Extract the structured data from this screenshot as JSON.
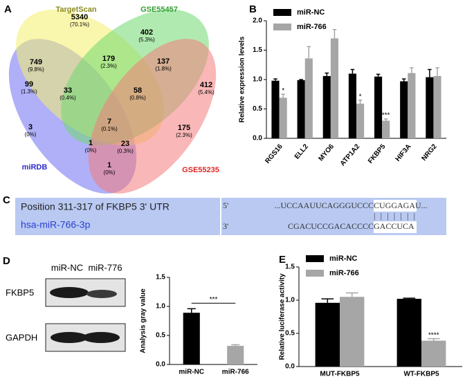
{
  "panel_labels": [
    "A",
    "B",
    "C",
    "D",
    "E"
  ],
  "venn": {
    "sets": [
      {
        "name": "miRDB",
        "color": "#6f6ff2",
        "label_color": "#2a2ad0"
      },
      {
        "name": "TargetScan",
        "color": "#f4f06c",
        "label_color": "#8a8a20"
      },
      {
        "name": "GSE55457",
        "color": "#70d870",
        "label_color": "#2e9e2e"
      },
      {
        "name": "GSE55235",
        "color": "#f47c7c",
        "label_color": "#e02424"
      }
    ],
    "regions": [
      {
        "count": 5340,
        "percent": "(70.1%)"
      },
      {
        "count": 402,
        "percent": "(5.3%)"
      },
      {
        "count": 749,
        "percent": "(9.8%)"
      },
      {
        "count": 179,
        "percent": "(2.3%)"
      },
      {
        "count": 137,
        "percent": "(1.8%)"
      },
      {
        "count": 99,
        "percent": "(1.3%)"
      },
      {
        "count": 412,
        "percent": "(5.4%)"
      },
      {
        "count": 33,
        "percent": "(0.4%)"
      },
      {
        "count": 58,
        "percent": "(0.8%)"
      },
      {
        "count": 7,
        "percent": "(0.1%)"
      },
      {
        "count": 3,
        "percent": "(0%)"
      },
      {
        "count": 175,
        "percent": "(2.3%)"
      },
      {
        "count": 1,
        "percent": "(0%)"
      },
      {
        "count": 23,
        "percent": "(0.3%)"
      },
      {
        "count": 1,
        "percent": "(0%)"
      }
    ]
  },
  "sequence": {
    "target_label": "Position 311-317 of FKBP5 3' UTR",
    "mirna_label": "hsa-miR-766-3p",
    "end5": "5'",
    "end3": "3'",
    "target_seq": "...UCCAAUUCAGGGUCCC",
    "target_seed": "CUGGAGA",
    "target_tail": "U...",
    "pairing": "|||||||",
    "mirna_seq": "CGACUCCGACACCCC",
    "mirna_seed": "GACCUCA"
  },
  "blot": {
    "lanes": [
      "miR-NC",
      "miR-776"
    ],
    "proteins": [
      "FKBP5",
      "GAPDH"
    ]
  },
  "chart_data": [
    {
      "type": "bar",
      "ylabel": "Relative expression levels",
      "categories": [
        "RGS16",
        "ELL2",
        "MYO6",
        "ATP1A2",
        "FKBP5",
        "HIF3A",
        "NRG2"
      ],
      "series": [
        {
          "name": "miR-NC",
          "color": "#000000",
          "values": [
            0.98,
            0.99,
            1.06,
            1.1,
            1.05,
            0.97,
            1.04
          ],
          "errors": [
            0.03,
            0.01,
            0.05,
            0.07,
            0.04,
            0.04,
            0.13
          ]
        },
        {
          "name": "miR-766",
          "color": "#a6a6a6",
          "values": [
            0.69,
            1.36,
            1.7,
            0.59,
            0.3,
            1.11,
            1.06
          ],
          "errors": [
            0.06,
            0.2,
            0.15,
            0.06,
            0.03,
            0.09,
            0.14
          ]
        }
      ],
      "annotations": [
        {
          "text": "*",
          "category": "RGS16",
          "series": "miR-766"
        },
        {
          "text": "*",
          "category": "ATP1A2",
          "series": "miR-766"
        },
        {
          "text": "***",
          "category": "FKBP5",
          "series": "miR-766"
        }
      ],
      "ylim": [
        0,
        2.0
      ],
      "yticks": [
        {
          "value": 0,
          "label": "0.0"
        },
        0.5,
        {
          "value": 1,
          "label": "1.0"
        },
        1.5,
        {
          "value": 2,
          "label": "2.0"
        }
      ],
      "legend": "top-left",
      "rotate_categories": true
    },
    {
      "type": "bar",
      "ylabel": "Analysis gray value",
      "categories": [
        "miR-NC",
        "miR-766"
      ],
      "values": [
        0.89,
        0.32
      ],
      "errors": [
        0.07,
        0.02
      ],
      "colors": [
        "#000000",
        "#a6a6a6"
      ],
      "annotations": [
        {
          "text": "***"
        }
      ],
      "ylim": [
        0,
        1.5
      ],
      "yticks": [
        {
          "value": 0,
          "label": "0.0"
        },
        0.5,
        {
          "value": 1,
          "label": "1.0"
        },
        1.5
      ]
    },
    {
      "type": "bar",
      "ylabel": "Relative luciferase activity",
      "categories": [
        "MUT-FKBP5",
        "WT-FKBP5"
      ],
      "series": [
        {
          "name": "miR-NC",
          "color": "#000000",
          "values": [
            0.96,
            1.02
          ],
          "errors": [
            0.06,
            0.01
          ]
        },
        {
          "name": "miR-766",
          "color": "#a6a6a6",
          "values": [
            1.05,
            0.39
          ],
          "errors": [
            0.06,
            0.03
          ]
        }
      ],
      "annotations": [
        {
          "text": "****",
          "category": "WT-FKBP5",
          "series": "miR-766"
        }
      ],
      "ylim": [
        0,
        1.5
      ],
      "yticks": [
        {
          "value": 0,
          "label": "0.0"
        },
        0.5,
        {
          "value": 1,
          "label": "1.0"
        },
        1.5
      ],
      "legend": "top-left"
    }
  ]
}
